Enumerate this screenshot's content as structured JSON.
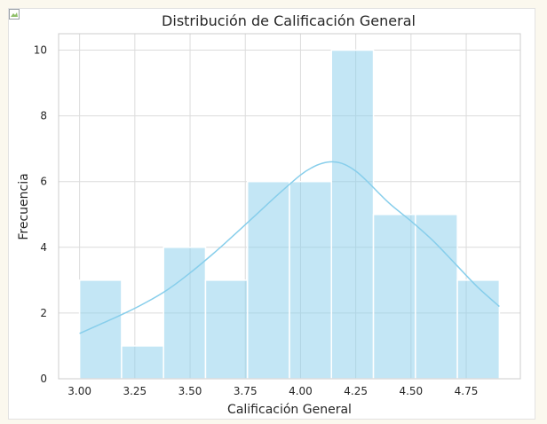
{
  "chart_data": {
    "type": "bar",
    "title": "Distribución de Calificación General",
    "xlabel": "Calificación General",
    "ylabel": "Frecuencia",
    "bins": [
      {
        "x0": 3.0,
        "x1": 3.19,
        "count": 3
      },
      {
        "x0": 3.19,
        "x1": 3.38,
        "count": 1
      },
      {
        "x0": 3.38,
        "x1": 3.57,
        "count": 4
      },
      {
        "x0": 3.57,
        "x1": 3.76,
        "count": 3
      },
      {
        "x0": 3.76,
        "x1": 3.95,
        "count": 6
      },
      {
        "x0": 3.95,
        "x1": 4.14,
        "count": 6
      },
      {
        "x0": 4.14,
        "x1": 4.33,
        "count": 10
      },
      {
        "x0": 4.33,
        "x1": 4.52,
        "count": 5
      },
      {
        "x0": 4.52,
        "x1": 4.71,
        "count": 5
      },
      {
        "x0": 4.71,
        "x1": 4.9,
        "count": 3
      }
    ],
    "kde": {
      "x": [
        3.0,
        3.1,
        3.2,
        3.3,
        3.4,
        3.5,
        3.6,
        3.7,
        3.8,
        3.9,
        4.0,
        4.05,
        4.1,
        4.15,
        4.2,
        4.25,
        4.3,
        4.4,
        4.5,
        4.6,
        4.7,
        4.8,
        4.9
      ],
      "y": [
        1.38,
        1.68,
        1.98,
        2.32,
        2.72,
        3.22,
        3.78,
        4.38,
        5.0,
        5.62,
        6.2,
        6.42,
        6.56,
        6.6,
        6.52,
        6.32,
        6.02,
        5.35,
        4.8,
        4.2,
        3.5,
        2.8,
        2.2
      ]
    },
    "x_ticks": [
      "3.00",
      "3.25",
      "3.50",
      "3.75",
      "4.00",
      "4.25",
      "4.50",
      "4.75"
    ],
    "x_tick_values": [
      3.0,
      3.25,
      3.5,
      3.75,
      4.0,
      4.25,
      4.5,
      4.75
    ],
    "y_ticks": [
      "0",
      "2",
      "4",
      "6",
      "8",
      "10"
    ],
    "y_tick_values": [
      0,
      2,
      4,
      6,
      8,
      10
    ],
    "xlim": [
      2.905,
      4.995
    ],
    "ylim": [
      0,
      10.5
    ],
    "grid": true,
    "bar_color": "#87ceeb",
    "line_color": "#87ceeb",
    "gridline_color": "#dcdcdc"
  }
}
